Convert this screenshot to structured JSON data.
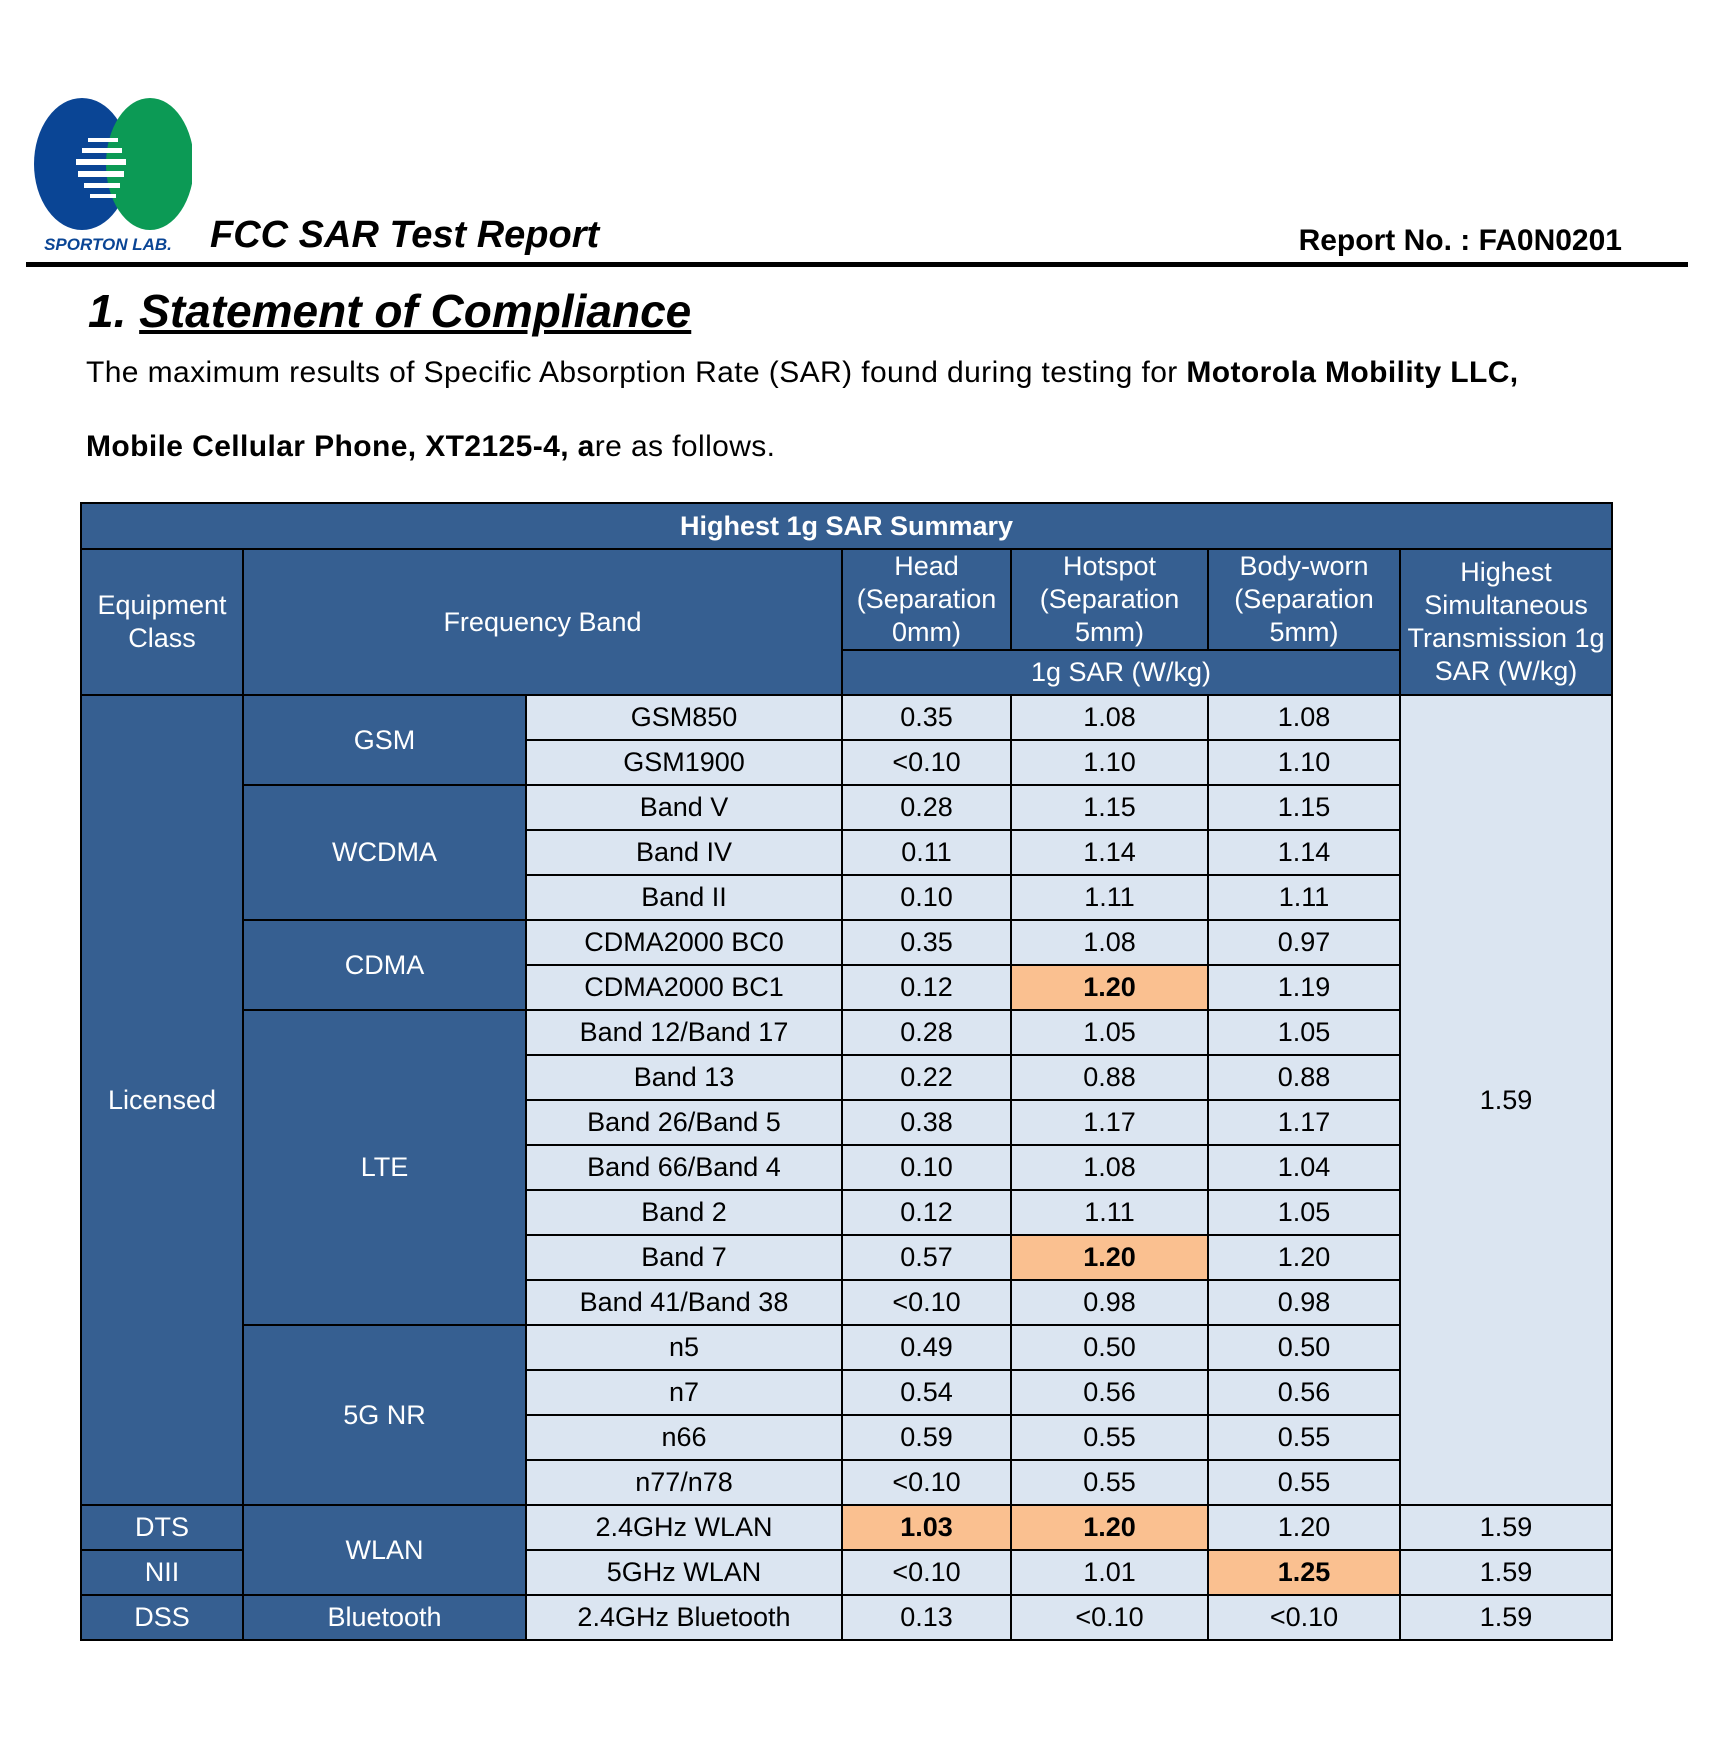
{
  "header": {
    "logo_text": "SPORTON LAB.",
    "report_title": "FCC SAR Test Report",
    "report_no": "Report No. : FA0N0201"
  },
  "section": {
    "number": "1.",
    "title": "Statement of Compliance",
    "p1_text": "The maximum results of Specific Absorption Rate (SAR) found during testing for ",
    "p1_bold": "Motorola Mobility LLC,",
    "p2_bold": "Mobile Cellular Phone, XT2125-4, a",
    "p2_text": "re as follows."
  },
  "table": {
    "title": "Highest 1g SAR Summary",
    "headers": {
      "equipment_class": "Equipment Class",
      "frequency_band": "Frequency Band",
      "head": "Head (Separation 0mm)",
      "hotspot": "Hotspot (Separation 5mm)",
      "bodyworn": "Body-worn (Separation 5mm)",
      "unit": "1g SAR (W/kg)",
      "simultaneous": "Highest Simultaneous Transmission 1g SAR (W/kg)"
    },
    "classes": {
      "licensed": "Licensed",
      "dts": "DTS",
      "nii": "NII",
      "dss": "DSS"
    },
    "groups": {
      "gsm": "GSM",
      "wcdma": "WCDMA",
      "cdma": "CDMA",
      "lte": "LTE",
      "nr": "5G NR",
      "wlan": "WLAN",
      "bt": "Bluetooth"
    },
    "rows": [
      {
        "band": "GSM850",
        "head": "0.35",
        "hotspot": "1.08",
        "body": "1.08"
      },
      {
        "band": "GSM1900",
        "head": "<0.10",
        "hotspot": "1.10",
        "body": "1.10"
      },
      {
        "band": "Band V",
        "head": "0.28",
        "hotspot": "1.15",
        "body": "1.15"
      },
      {
        "band": "Band IV",
        "head": "0.11",
        "hotspot": "1.14",
        "body": "1.14"
      },
      {
        "band": "Band II",
        "head": "0.10",
        "hotspot": "1.11",
        "body": "1.11"
      },
      {
        "band": "CDMA2000 BC0",
        "head": "0.35",
        "hotspot": "1.08",
        "body": "0.97"
      },
      {
        "band": "CDMA2000 BC1",
        "head": "0.12",
        "hotspot": "1.20",
        "body": "1.19"
      },
      {
        "band": "Band 12/Band 17",
        "head": "0.28",
        "hotspot": "1.05",
        "body": "1.05"
      },
      {
        "band": "Band 13",
        "head": "0.22",
        "hotspot": "0.88",
        "body": "0.88"
      },
      {
        "band": "Band 26/Band 5",
        "head": "0.38",
        "hotspot": "1.17",
        "body": "1.17"
      },
      {
        "band": "Band 66/Band 4",
        "head": "0.10",
        "hotspot": "1.08",
        "body": "1.04"
      },
      {
        "band": "Band 2",
        "head": "0.12",
        "hotspot": "1.11",
        "body": "1.05"
      },
      {
        "band": "Band 7",
        "head": "0.57",
        "hotspot": "1.20",
        "body": "1.20"
      },
      {
        "band": "Band 41/Band 38",
        "head": "<0.10",
        "hotspot": "0.98",
        "body": "0.98"
      },
      {
        "band": "n5",
        "head": "0.49",
        "hotspot": "0.50",
        "body": "0.50"
      },
      {
        "band": "n7",
        "head": "0.54",
        "hotspot": "0.56",
        "body": "0.56"
      },
      {
        "band": "n66",
        "head": "0.59",
        "hotspot": "0.55",
        "body": "0.55"
      },
      {
        "band": "n77/n78",
        "head": "<0.10",
        "hotspot": "0.55",
        "body": "0.55"
      },
      {
        "band": "2.4GHz WLAN",
        "head": "1.03",
        "hotspot": "1.20",
        "body": "1.20"
      },
      {
        "band": "5GHz WLAN",
        "head": "<0.10",
        "hotspot": "1.01",
        "body": "1.25"
      },
      {
        "band": "2.4GHz Bluetooth",
        "head": "0.13",
        "hotspot": "<0.10",
        "body": "<0.10"
      }
    ],
    "simultaneous": {
      "licensed": "1.59",
      "dts": "1.59",
      "nii": "1.59",
      "dss": "1.59"
    },
    "highlight_color": "#fac090"
  }
}
